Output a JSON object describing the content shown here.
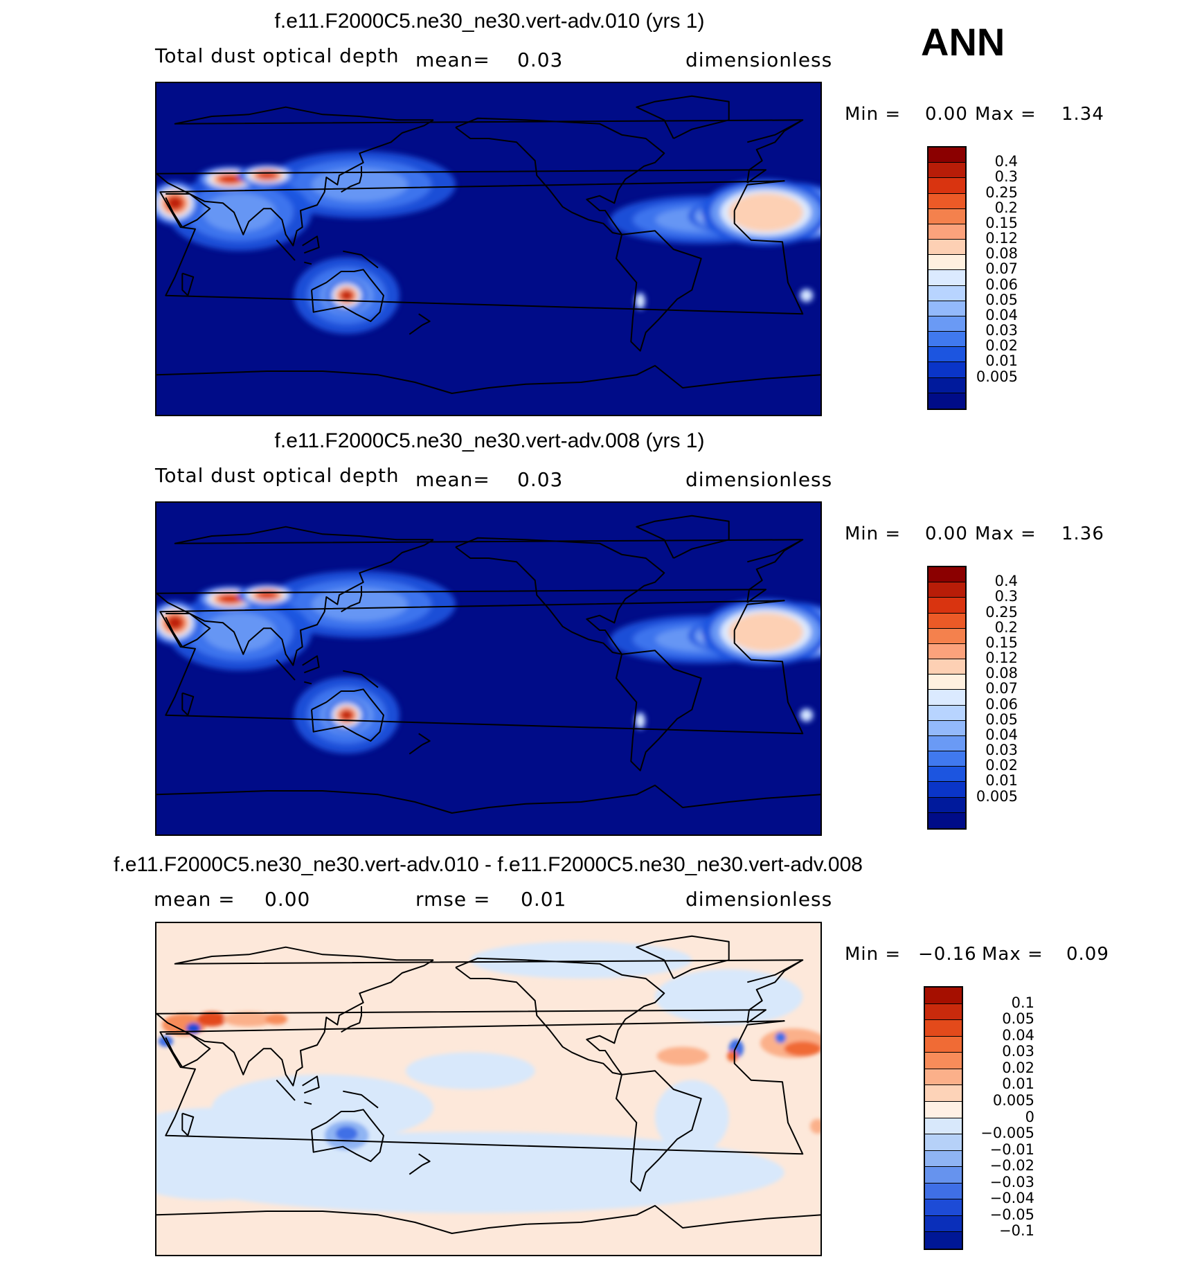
{
  "season": "ANN",
  "chart_data": [
    {
      "type": "heatmap",
      "title": "f.e11.F2000C5.ne30_ne30.vert-adv.010 (yrs 1)",
      "variable": "Total dust optical depth",
      "mean_label": "mean=",
      "mean_value": "0.03",
      "units": "dimensionless",
      "min_label": "Min =",
      "min_value": "0.00",
      "max_label": "Max =",
      "max_value": "1.34",
      "colorbar_levels": [
        "0.4",
        "0.3",
        "0.25",
        "0.2",
        "0.15",
        "0.12",
        "0.08",
        "0.07",
        "0.06",
        "0.05",
        "0.04",
        "0.03",
        "0.02",
        "0.01",
        "0.005"
      ],
      "colorbar_colors": [
        "#8b0000",
        "#b81d08",
        "#d93410",
        "#ec5a27",
        "#f4814d",
        "#fba27c",
        "#fdd0b4",
        "#fff0e0",
        "#dbeaff",
        "#b8d4ff",
        "#93b9fb",
        "#6a9af5",
        "#4079ef",
        "#1c55e0",
        "#0a35c8",
        "#001a9c",
        "#000c88"
      ],
      "projection": "cylindrical equidistant, centered on Pacific",
      "background_value_color": "#000c88"
    },
    {
      "type": "heatmap",
      "title": "f.e11.F2000C5.ne30_ne30.vert-adv.008 (yrs 1)",
      "variable": "Total dust optical depth",
      "mean_label": "mean=",
      "mean_value": "0.03",
      "units": "dimensionless",
      "min_label": "Min =",
      "min_value": "0.00",
      "max_label": "Max =",
      "max_value": "1.36",
      "colorbar_levels": [
        "0.4",
        "0.3",
        "0.25",
        "0.2",
        "0.15",
        "0.12",
        "0.08",
        "0.07",
        "0.06",
        "0.05",
        "0.04",
        "0.03",
        "0.02",
        "0.01",
        "0.005"
      ],
      "colorbar_colors": [
        "#8b0000",
        "#b81d08",
        "#d93410",
        "#ec5a27",
        "#f4814d",
        "#fba27c",
        "#fdd0b4",
        "#fff0e0",
        "#dbeaff",
        "#b8d4ff",
        "#93b9fb",
        "#6a9af5",
        "#4079ef",
        "#1c55e0",
        "#0a35c8",
        "#001a9c",
        "#000c88"
      ],
      "projection": "cylindrical equidistant, centered on Pacific",
      "background_value_color": "#000c88"
    },
    {
      "type": "heatmap",
      "title": "f.e11.F2000C5.ne30_ne30.vert-adv.010 - f.e11.F2000C5.ne30_ne30.vert-adv.008",
      "mean_label": "mean =",
      "mean_value": "0.00",
      "rmse_label": "rmse =",
      "rmse_value": "0.01",
      "units": "dimensionless",
      "min_label": "Min =",
      "min_value": "−0.16",
      "max_label": "Max =",
      "max_value": "0.09",
      "colorbar_levels": [
        "0.1",
        "0.05",
        "0.04",
        "0.03",
        "0.02",
        "0.01",
        "0.005",
        "0",
        "−0.005",
        "−0.01",
        "−0.02",
        "−0.03",
        "−0.04",
        "−0.05",
        "−0.1"
      ],
      "colorbar_colors": [
        "#a50f00",
        "#c92a0c",
        "#e34a1b",
        "#f06b35",
        "#f78c5a",
        "#fbb08a",
        "#fdd3b8",
        "#fff0e4",
        "#d8e8fb",
        "#b6d1f8",
        "#8fb4f3",
        "#6693ee",
        "#3f6fe6",
        "#1d4bd6",
        "#0a2fba",
        "#001796"
      ],
      "projection": "cylindrical equidistant, centered on Pacific",
      "background_value_color": "#fde8da"
    }
  ]
}
